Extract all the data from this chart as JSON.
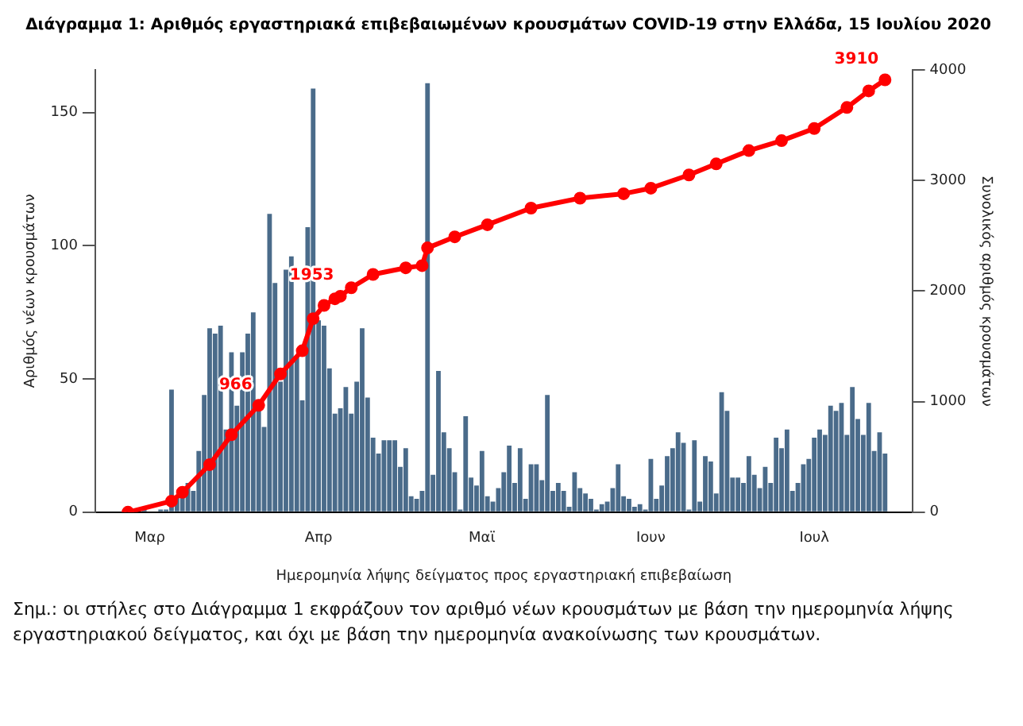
{
  "chart_data": {
    "type": "bar",
    "title": "Διάγραμμα 1: Αριθμός εργαστηριακά επιβεβαιωμένων κρουσμάτων COVID-19 στην Ελλάδα, 15 Ιουλίου 2020",
    "xlabel": "Ημερομηνία λήψης δείγματος προς εργαστηριακή επιβεβαίωση",
    "ylabel": "Αριθμός νέων κρουσμάτων",
    "y2label": "Συνολικός αριθμός κρουσμάτων",
    "categories": [
      null,
      null,
      null,
      null,
      "Μαρ",
      null,
      null,
      null,
      null,
      null,
      null,
      null,
      null,
      null,
      null,
      null,
      null,
      null,
      null,
      null,
      null,
      null,
      null,
      null,
      null,
      null,
      null,
      null,
      null,
      null,
      null,
      null,
      null,
      null,
      null,
      "Απρ",
      null,
      null,
      null,
      null,
      null,
      null,
      null,
      null,
      null,
      null,
      null,
      null,
      null,
      null,
      null,
      null,
      null,
      null,
      null,
      null,
      null,
      null,
      null,
      null,
      null,
      null,
      null,
      null,
      null,
      "Μαϊ",
      null,
      null,
      null,
      null,
      null,
      null,
      null,
      null,
      null,
      null,
      null,
      null,
      null,
      null,
      null,
      null,
      null,
      null,
      null,
      null,
      null,
      null,
      null,
      null,
      null,
      null,
      null,
      null,
      null,
      null,
      "Ιουν",
      null,
      null,
      null,
      null,
      null,
      null,
      null,
      null,
      null,
      null,
      null,
      null,
      null,
      null,
      null,
      null,
      null,
      null,
      null,
      null,
      null,
      null,
      null,
      null,
      null,
      null,
      null,
      null,
      null,
      "Ιουλ",
      null,
      null,
      null,
      null,
      null,
      null,
      null,
      null,
      null,
      null,
      null,
      null,
      null
    ],
    "series": [
      {
        "color": "#4a6b8a",
        "values": [
          null,
          null,
          0,
          1,
          0,
          0,
          1,
          1,
          46,
          6,
          6,
          11,
          8,
          23,
          44,
          69,
          67,
          70,
          31,
          60,
          40,
          60,
          67,
          75,
          40,
          32,
          112,
          86,
          49,
          91,
          96,
          58,
          42,
          107,
          159,
          72,
          70,
          54,
          37,
          39,
          47,
          37,
          49,
          69,
          43,
          28,
          22,
          27,
          27,
          27,
          17,
          24,
          6,
          5,
          8,
          161,
          14,
          53,
          30,
          24,
          15,
          1,
          36,
          13,
          10,
          23,
          6,
          4,
          9,
          15,
          25,
          11,
          24,
          5,
          18,
          18,
          12,
          44,
          8,
          11,
          8,
          2,
          15,
          9,
          7,
          5,
          1,
          3,
          4,
          9,
          18,
          6,
          5,
          2,
          3,
          1,
          20,
          5,
          10,
          21,
          24,
          30,
          26,
          1,
          27,
          4,
          21,
          19,
          7,
          45,
          38,
          13,
          13,
          11,
          21,
          14,
          9,
          17,
          11,
          28,
          24,
          31,
          8,
          11,
          18,
          20,
          28,
          31,
          29,
          40,
          38,
          41,
          29,
          47,
          35,
          29,
          41,
          23,
          30,
          22
        ]
      },
      {
        "type": "line",
        "axis": "y2",
        "color": "#ff0000",
        "values": [
          0,
          null,
          null,
          null,
          null,
          null,
          null,
          null,
          100,
          null,
          180,
          null,
          null,
          null,
          null,
          430,
          null,
          null,
          null,
          700,
          null,
          null,
          null,
          null,
          966,
          null,
          null,
          null,
          1250,
          null,
          null,
          null,
          1460,
          null,
          1750,
          null,
          1870,
          null,
          1930,
          1953,
          null,
          2030,
          null,
          null,
          null,
          2150,
          null,
          null,
          null,
          null,
          null,
          2210,
          null,
          null,
          2230,
          2390,
          null,
          null,
          null,
          null,
          2490,
          null,
          null,
          null,
          null,
          null,
          2600,
          null,
          null,
          null,
          null,
          null,
          null,
          null,
          2750,
          null,
          null,
          null,
          null,
          null,
          null,
          null,
          null,
          2840,
          null,
          null,
          null,
          null,
          null,
          null,
          null,
          2880,
          null,
          null,
          null,
          null,
          2930,
          null,
          null,
          null,
          null,
          null,
          null,
          3050,
          null,
          null,
          null,
          null,
          3150,
          null,
          null,
          null,
          null,
          null,
          3270,
          null,
          null,
          null,
          null,
          null,
          3360,
          null,
          null,
          null,
          null,
          null,
          3470,
          null,
          null,
          null,
          null,
          null,
          3660,
          null,
          null,
          null,
          3810,
          null,
          null,
          3910
        ],
        "value_labels": [
          null,
          null,
          null,
          null,
          null,
          null,
          null,
          null,
          null,
          null,
          null,
          null,
          null,
          null,
          null,
          null,
          null,
          null,
          null,
          null,
          null,
          null,
          null,
          null,
          "966",
          null,
          null,
          null,
          null,
          null,
          null,
          null,
          null,
          null,
          null,
          null,
          null,
          null,
          null,
          "1953",
          null,
          null,
          null,
          null,
          null,
          null,
          null,
          null,
          null,
          null,
          null,
          null,
          null,
          null,
          null,
          null,
          null,
          null,
          null,
          null,
          null,
          null,
          null,
          null,
          null,
          null,
          null,
          null,
          null,
          null,
          null,
          null,
          null,
          null,
          null,
          null,
          null,
          null,
          null,
          null,
          null,
          null,
          null,
          null,
          null,
          null,
          null,
          null,
          null,
          null,
          null,
          null,
          null,
          null,
          null,
          null,
          null,
          null,
          null,
          null,
          null,
          null,
          null,
          null,
          null,
          null,
          null,
          null,
          null,
          null,
          null,
          null,
          null,
          null,
          null,
          null,
          null,
          null,
          null,
          null,
          null,
          null,
          null,
          null,
          null,
          null,
          null,
          null,
          null,
          null,
          null,
          null,
          null,
          null,
          null,
          null,
          null,
          null,
          null,
          "3910"
        ]
      }
    ],
    "ylim": [
      0,
      166
    ],
    "yticks": [
      0,
      50,
      100,
      150
    ],
    "y2lim": [
      0,
      4000
    ],
    "y2ticks": [
      0,
      1000,
      2000,
      3000,
      4000
    ],
    "marker": "circle",
    "grid": false,
    "legend": false,
    "annotations": [
      "Σημ.: οι στήλες στο Διάγραμμα 1 εκφράζουν τον αριθμό νέων κρουσμάτων με βάση την ημερομηνία λήψης εργαστηριακού δείγματος, και όχι με βάση την ημερομηνία ανακοίνωσης των κρουσμάτων."
    ]
  }
}
